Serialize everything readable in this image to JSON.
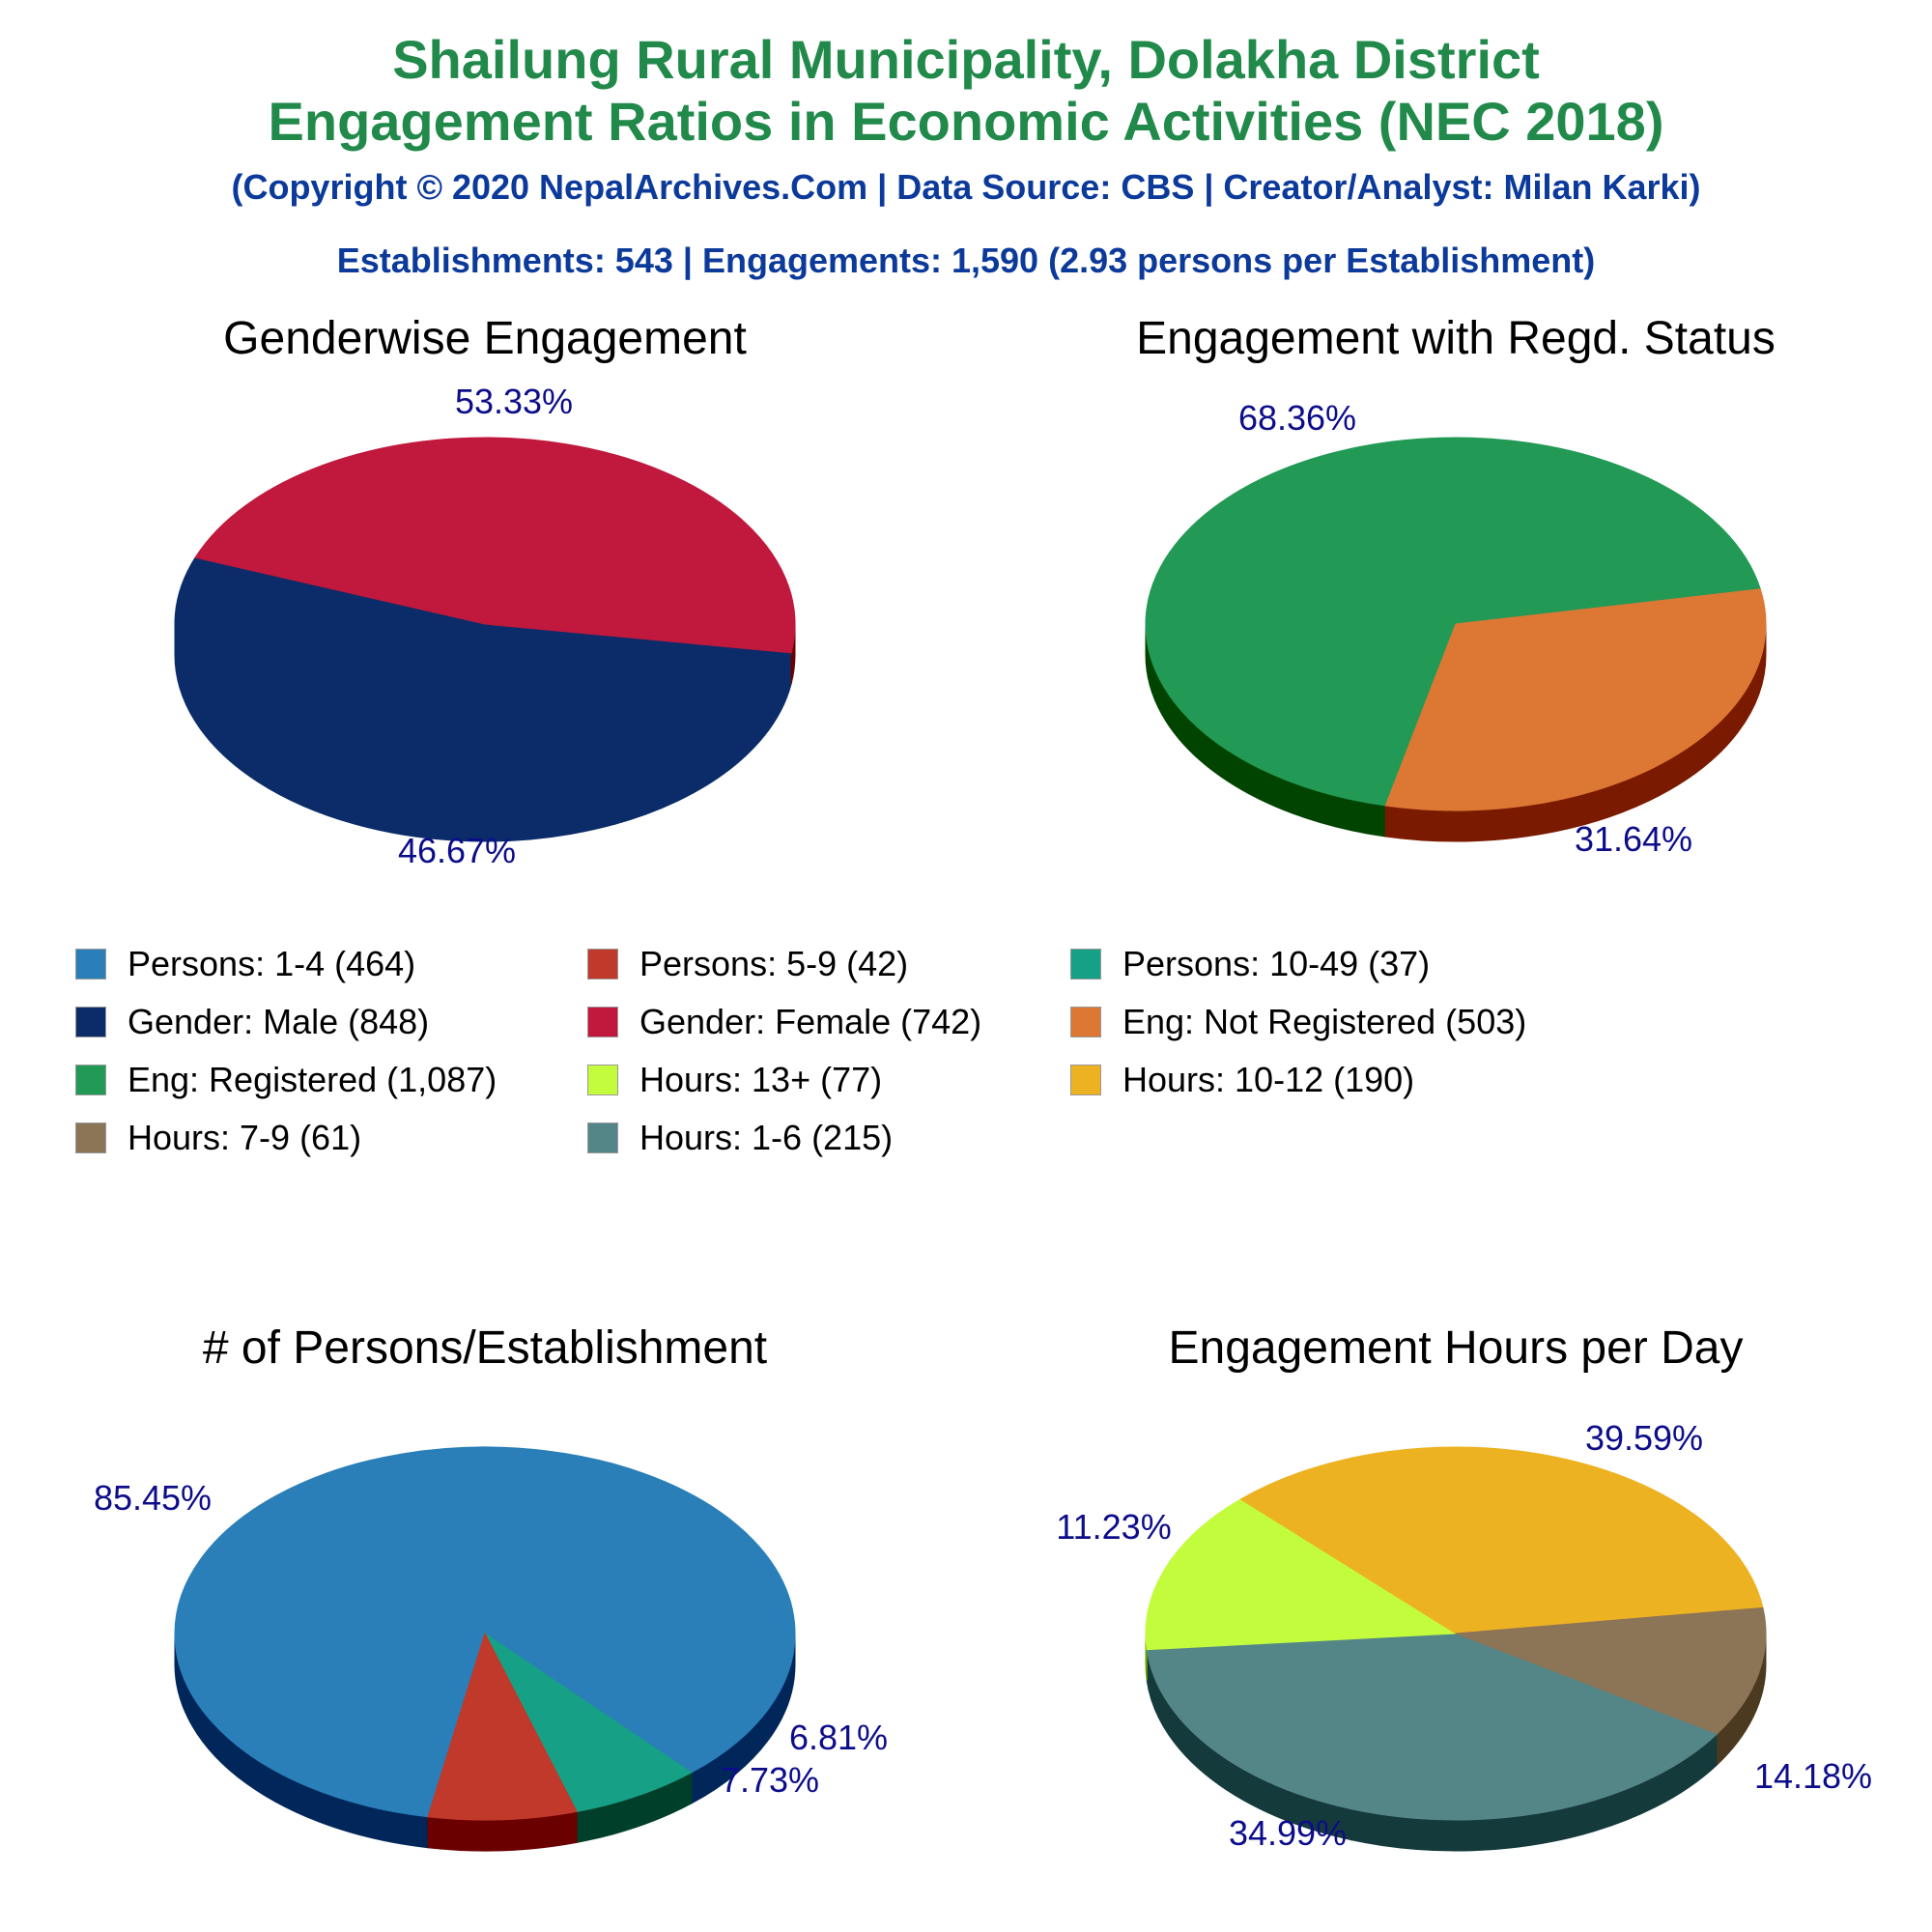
{
  "header": {
    "title_line1": "Shailung Rural Municipality, Dolakha District",
    "title_line2": "Engagement Ratios in Economic Activities (NEC 2018)",
    "subtitle": "(Copyright © 2020 NepalArchives.Com | Data Source: CBS | Creator/Analyst: Milan Karki)",
    "stats": "Establishments: 543 | Engagements: 1,590 (2.93 persons per Establishment)",
    "title_color": "#218a4b",
    "subtitle_color": "#0c3a9a"
  },
  "legend": [
    {
      "label": "Persons: 1-4 (464)",
      "color": "#2a7fb8"
    },
    {
      "label": "Persons: 5-9 (42)",
      "color": "#c0392b"
    },
    {
      "label": "Persons: 10-49 (37)",
      "color": "#16a085"
    },
    {
      "label": "Gender: Male (848)",
      "color": "#0b2c68"
    },
    {
      "label": "Gender: Female (742)",
      "color": "#c0193d"
    },
    {
      "label": "Eng: Not Registered (503)",
      "color": "#dd7734"
    },
    {
      "label": "Eng: Registered (1,087)",
      "color": "#229955"
    },
    {
      "label": "Hours: 13+ (77)",
      "color": "#c3fc3d"
    },
    {
      "label": "Hours: 10-12 (190)",
      "color": "#edb221"
    },
    {
      "label": "Hours: 7-9 (61)",
      "color": "#8c7456"
    },
    {
      "label": "Hours: 1-6 (215)",
      "color": "#548688"
    }
  ],
  "chart_data": [
    {
      "type": "pie",
      "title": "Genderwise Engagement",
      "categories": [
        "Gender: Male",
        "Gender: Female"
      ],
      "values": [
        53.33,
        46.67
      ],
      "labels": [
        "53.33%",
        "46.67%"
      ],
      "colors": [
        "#0b2c68",
        "#c0193d"
      ],
      "side_colors": [
        "#0b2c68",
        "#6a0000"
      ]
    },
    {
      "type": "pie",
      "title": "Engagement with Regd. Status",
      "categories": [
        "Eng: Registered",
        "Eng: Not Registered"
      ],
      "values": [
        68.36,
        31.64
      ],
      "labels": [
        "68.36%",
        "31.64%"
      ],
      "colors": [
        "#229955",
        "#dd7734"
      ],
      "side_colors": [
        "#004400",
        "#7a1a00"
      ]
    },
    {
      "type": "pie",
      "title": "# of Persons/Establishment",
      "categories": [
        "Persons: 1-4",
        "Persons: 10-49",
        "Persons: 5-9"
      ],
      "values": [
        85.45,
        6.81,
        7.73
      ],
      "labels": [
        "85.45%",
        "6.81%",
        "7.73%"
      ],
      "colors": [
        "#2a7fb8",
        "#16a085",
        "#c0392b"
      ],
      "side_colors": [
        "#00265a",
        "#00402a",
        "#6a0000"
      ]
    },
    {
      "type": "pie",
      "title": "Engagement Hours per Day",
      "categories": [
        "Hours: 1-6",
        "Hours: 13+",
        "Hours: 10-12",
        "Hours: 7-9"
      ],
      "values": [
        39.59,
        14.18,
        34.99,
        11.23
      ],
      "labels": [
        "39.59%",
        "14.18%",
        "34.99%",
        "11.23%"
      ],
      "colors": [
        "#548688",
        "#c3fc3d",
        "#edb221",
        "#8c7456"
      ],
      "side_colors": [
        "#143a3c",
        "#66a600",
        "#955a00",
        "#4c3a20"
      ]
    }
  ]
}
